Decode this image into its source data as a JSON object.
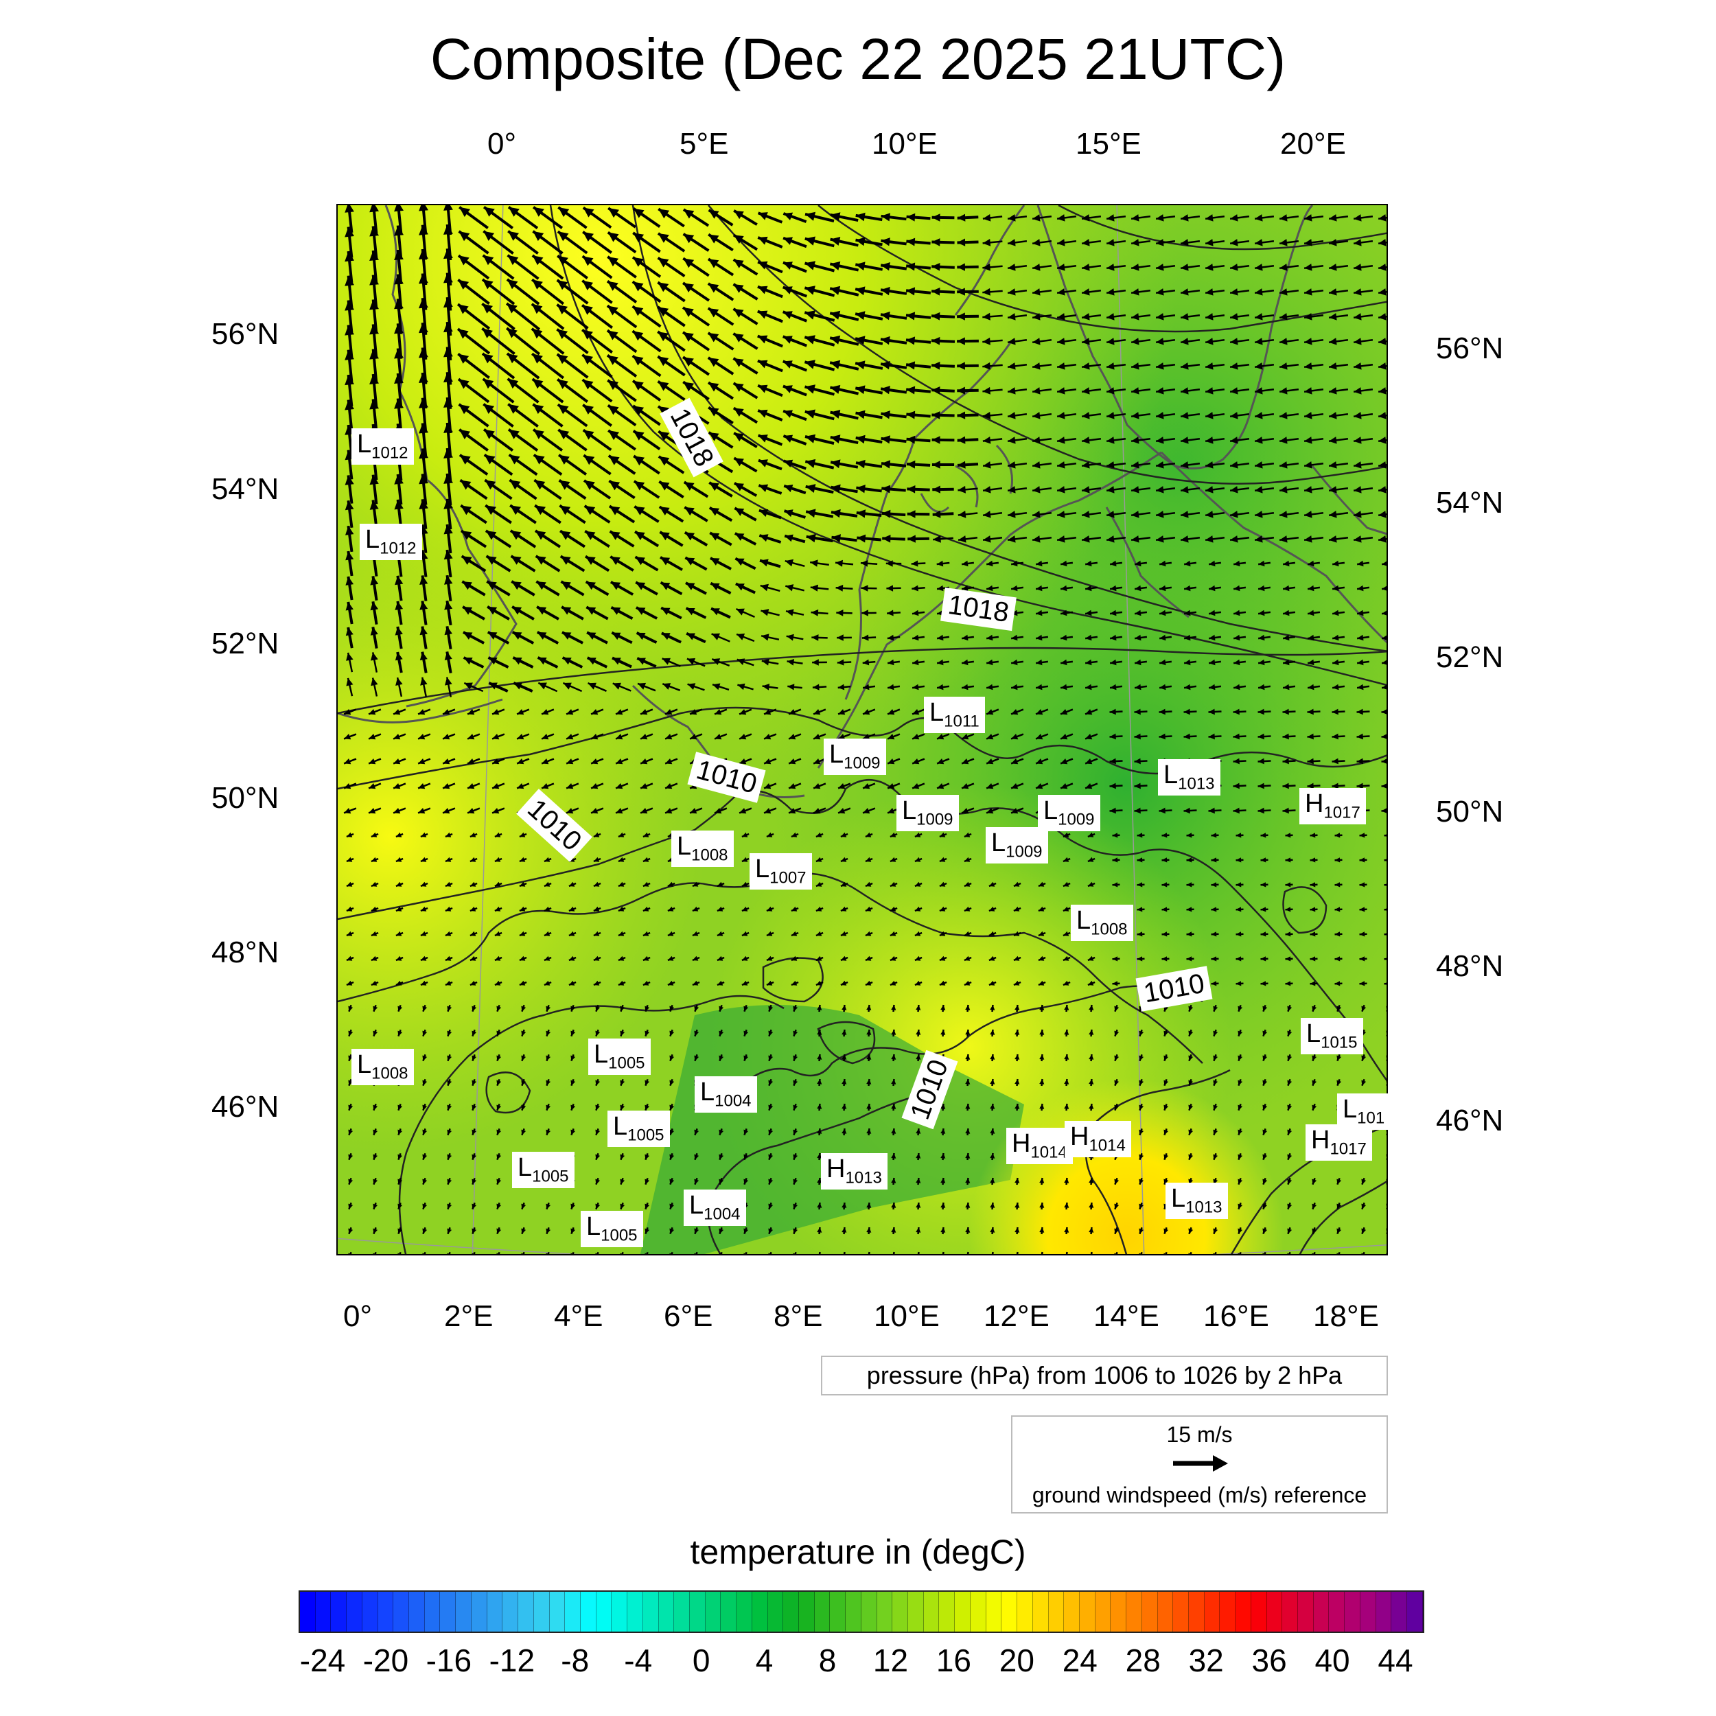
{
  "title": "Composite (Dec 22 2025 21UTC)",
  "top_lon_labels": [
    "0°",
    "5°E",
    "10°E",
    "15°E",
    "20°E"
  ],
  "bottom_lon_labels": [
    "0°",
    "2°E",
    "4°E",
    "6°E",
    "8°E",
    "10°E",
    "12°E",
    "14°E",
    "16°E",
    "18°E"
  ],
  "left_lat_labels": [
    "56°N",
    "54°N",
    "52°N",
    "50°N",
    "48°N",
    "46°N"
  ],
  "right_lat_labels": [
    "56°N",
    "54°N",
    "52°N",
    "50°N",
    "48°N",
    "46°N"
  ],
  "contour_labels": [
    "1018",
    "1018",
    "1010",
    "1010",
    "1010",
    "1010"
  ],
  "pressure_centers": [
    {
      "kind": "L",
      "value": "1012"
    },
    {
      "kind": "L",
      "value": "1012"
    },
    {
      "kind": "L",
      "value": "1011"
    },
    {
      "kind": "L",
      "value": "1009"
    },
    {
      "kind": "L",
      "value": "1013"
    },
    {
      "kind": "H",
      "value": "1017"
    },
    {
      "kind": "L",
      "value": "1009"
    },
    {
      "kind": "L",
      "value": "1009"
    },
    {
      "kind": "L",
      "value": "1009"
    },
    {
      "kind": "L",
      "value": "1008"
    },
    {
      "kind": "L",
      "value": "1007"
    },
    {
      "kind": "L",
      "value": "1008"
    },
    {
      "kind": "L",
      "value": "1015"
    },
    {
      "kind": "L",
      "value": "1008"
    },
    {
      "kind": "L",
      "value": "1005"
    },
    {
      "kind": "L",
      "value": "1004"
    },
    {
      "kind": "L",
      "value": "1005"
    },
    {
      "kind": "L",
      "value": "101"
    },
    {
      "kind": "H",
      "value": "1014"
    },
    {
      "kind": "H",
      "value": "1014"
    },
    {
      "kind": "H",
      "value": "1017"
    },
    {
      "kind": "L",
      "value": "1005"
    },
    {
      "kind": "H",
      "value": "1013"
    },
    {
      "kind": "L",
      "value": "1013"
    },
    {
      "kind": "L",
      "value": "1004"
    },
    {
      "kind": "L",
      "value": "1005"
    }
  ],
  "pressure_note": "pressure (hPa) from 1006 to 1026 by 2 hPa",
  "wind_reference": {
    "speed": "15 m/s",
    "caption": "ground windspeed (m/s) reference"
  },
  "colorbar": {
    "title": "temperature in (degC)",
    "labels": [
      "-24",
      "-20",
      "-16",
      "-12",
      "-8",
      "-4",
      "0",
      "4",
      "8",
      "12",
      "16",
      "20",
      "24",
      "28",
      "32",
      "36",
      "40",
      "44"
    ],
    "colors": [
      "#0000ff",
      "#0a24ff",
      "#1548ff",
      "#1f6cf5",
      "#2a90f0",
      "#33b4f0",
      "#33d8f0",
      "#00ffff",
      "#00f0d0",
      "#00e0a0",
      "#00d070",
      "#00c040",
      "#10b020",
      "#40c020",
      "#70d020",
      "#a0e010",
      "#d0f000",
      "#ffff00",
      "#ffd800",
      "#ffb000",
      "#ff8800",
      "#ff6000",
      "#ff3000",
      "#ff0000",
      "#e00030",
      "#c00060",
      "#a00080",
      "#6000a0"
    ]
  }
}
